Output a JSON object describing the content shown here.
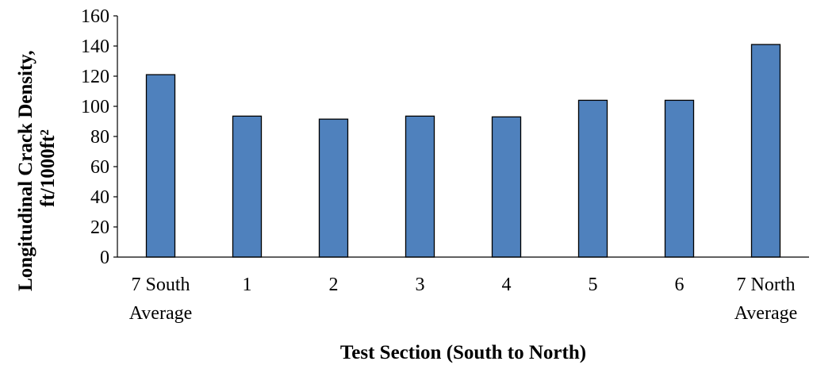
{
  "chart_data": {
    "type": "bar",
    "title": "",
    "xlabel": "Test Section (South to North)",
    "ylabel_lines": [
      "Longitudinal Crack Density,",
      "ft/1000ft²"
    ],
    "categories": [
      [
        "7 South",
        "Average"
      ],
      [
        "1"
      ],
      [
        "2"
      ],
      [
        "3"
      ],
      [
        "4"
      ],
      [
        "5"
      ],
      [
        "6"
      ],
      [
        "7 North",
        "Average"
      ]
    ],
    "values": [
      121,
      93.5,
      91.5,
      93.5,
      93,
      104,
      104,
      141
    ],
    "ylim": [
      0,
      160
    ],
    "yticks": [
      0,
      20,
      40,
      60,
      80,
      100,
      120,
      140,
      160
    ],
    "grid": false,
    "legend": "none",
    "bar_color": "#4F81BD",
    "bar_edge_color": "#000000"
  }
}
